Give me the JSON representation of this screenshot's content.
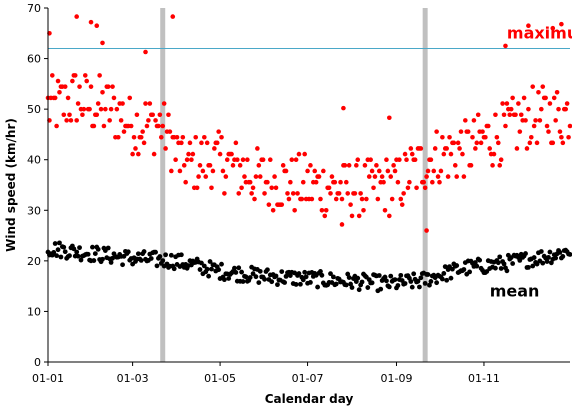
{
  "chart_data": {
    "type": "scatter",
    "title": "",
    "xlabel": "Calendar day",
    "ylabel": "Wind speed (km/hr)",
    "xlim": [
      1,
      365
    ],
    "ylim": [
      0,
      70
    ],
    "x_ticks": [
      {
        "day": 1,
        "label": "01-01"
      },
      {
        "day": 60,
        "label": "01-03"
      },
      {
        "day": 121,
        "label": "01-05"
      },
      {
        "day": 182,
        "label": "01-07"
      },
      {
        "day": 244,
        "label": "01-09"
      },
      {
        "day": 305,
        "label": "01-11"
      }
    ],
    "y_ticks": [
      0,
      10,
      20,
      30,
      40,
      50,
      60,
      70
    ],
    "grid": false,
    "reference_line": {
      "y": 62,
      "color": "#4aa8c8"
    },
    "vertical_bands": [
      {
        "day": 81,
        "color": "#c0c0c0"
      },
      {
        "day": 264,
        "color": "#c0c0c0"
      }
    ],
    "annotations": [
      {
        "text": "maximum",
        "color": "#ff0000",
        "day": 321,
        "y": 64
      },
      {
        "text": "mean",
        "color": "#000000",
        "day": 309,
        "y": 13
      }
    ],
    "series": [
      {
        "color": "#ff0000",
        "x_days": [
          1,
          366
        ],
        "spline_x": [
          1,
          20,
          45,
          60,
          80,
          95,
          120,
          150,
          182,
          215,
          244,
          265,
          290,
          315,
          335,
          365
        ],
        "spline_y": [
          50,
          52,
          50,
          47,
          47,
          39,
          40,
          36,
          35,
          34,
          35,
          40,
          42,
          45,
          48,
          49
        ],
        "spread": 6,
        "outliers": [
          {
            "x": 2,
            "y": 65
          },
          {
            "x": 21,
            "y": 68.3
          },
          {
            "x": 31,
            "y": 67.2
          },
          {
            "x": 35,
            "y": 66.5
          },
          {
            "x": 39,
            "y": 63.1
          },
          {
            "x": 69,
            "y": 61.3
          },
          {
            "x": 88,
            "y": 68.3
          },
          {
            "x": 336,
            "y": 66.5
          },
          {
            "x": 320,
            "y": 62.5
          },
          {
            "x": 353,
            "y": 66.0
          },
          {
            "x": 359,
            "y": 66.8
          },
          {
            "x": 265,
            "y": 26.0
          },
          {
            "x": 206,
            "y": 27.2
          },
          {
            "x": 239,
            "y": 48.3
          },
          {
            "x": 207,
            "y": 50.2
          }
        ]
      },
      {
        "color": "#000000",
        "spline_x": [
          1,
          30,
          60,
          90,
          120,
          150,
          180,
          210,
          240,
          260,
          290,
          320,
          350,
          365
        ],
        "spline_y": [
          22.5,
          21.5,
          20.5,
          20,
          18,
          17,
          16.5,
          16,
          15.5,
          16,
          18.5,
          19.5,
          21,
          22
        ],
        "spread": 1.6
      }
    ]
  }
}
